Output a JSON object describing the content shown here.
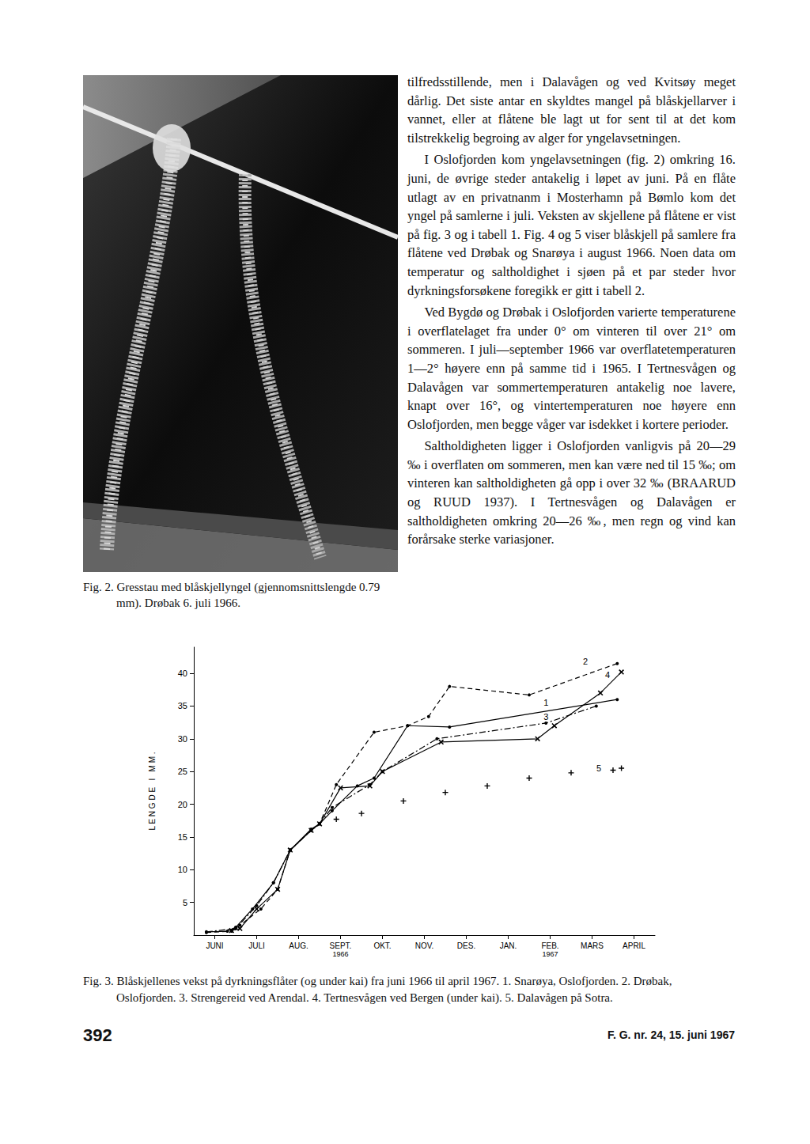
{
  "figure2": {
    "caption": "Fig. 2. Gresstau med blåskjellyngel (gjennomsnittslengde 0.79 mm). Drøbak 6. juli 1966."
  },
  "text": {
    "paragraphs": [
      "tilfredsstillende, men i Dalavågen og ved Kvitsøy meget dårlig. Det siste antar en skyldtes mangel på blåskjellarver i vannet, eller at flåtene ble lagt ut for sent til at det kom tilstrekkelig begroing av alger for yngelavsetningen.",
      "I Oslofjorden kom yngelavsetningen (fig. 2) omkring 16. juni, de øvrige steder antakelig i løpet av juni. På en flåte utlagt av en privatnanm i Mosterhamn på Bømlo kom det yngel på samlerne i juli. Veksten av skjellene på flåtene er vist på fig. 3 og i tabell 1. Fig. 4 og 5 viser blåskjell på samlere fra flåtene ved Drøbak og Snarøya i august 1966. Noen data om temperatur og saltholdighet i sjøen på et par steder hvor dyrkningsforsøkene foregikk er gitt i tabell 2.",
      "Ved Bygdø og Drøbak i Oslofjorden varierte temperaturene i overflatelaget fra under 0° om vinteren til over 21° om sommeren. I juli—september 1966 var overflatetemperaturen 1—2° høyere enn på samme tid i 1965. I Tertnesvågen og Dalavågen var sommertemperaturen antakelig noe lavere, knapt over 16°, og vintertemperaturen noe høyere enn Oslofjorden, men begge våger var isdekket i kortere perioder.",
      "Saltholdigheten ligger i Oslofjorden vanligvis på 20—29 ‰ i overflaten om sommeren, men kan være ned til 15 ‰; om vinteren kan saltholdigheten gå opp i over 32 ‰ (BRAARUD og RUUD 1937). I Tertnesvågen og Dalavågen er saltholdigheten omkring 20—26 ‰, men regn og vind kan forårsake sterke variasjoner."
    ]
  },
  "chart_data": {
    "type": "line",
    "y_label": "LENGDE I MM.",
    "color": "#000000",
    "grid": false,
    "xlim": [
      0,
      11
    ],
    "xticks": [
      {
        "value": 0.5,
        "label": "JUNI"
      },
      {
        "value": 1.5,
        "label": "JULI"
      },
      {
        "value": 2.5,
        "label": "AUG."
      },
      {
        "value": 3.5,
        "label": "SEPT."
      },
      {
        "value": 4.5,
        "label": "OKT."
      },
      {
        "value": 5.5,
        "label": "NOV."
      },
      {
        "value": 6.5,
        "label": "DES."
      },
      {
        "value": 7.5,
        "label": "JAN."
      },
      {
        "value": 8.5,
        "label": "FEB."
      },
      {
        "value": 9.5,
        "label": "MARS"
      },
      {
        "value": 10.5,
        "label": "APRIL"
      }
    ],
    "year_labels": [
      {
        "x": 3.5,
        "label": "1966"
      },
      {
        "x": 8.5,
        "label": "1967"
      }
    ],
    "ylim": [
      0,
      44
    ],
    "yticks": [
      5,
      10,
      15,
      20,
      25,
      30,
      35,
      40
    ],
    "series": [
      {
        "marker": "circle",
        "line_style": "solid",
        "x": [
          0.3,
          0.8,
          1.0,
          1.4,
          1.9,
          2.3,
          2.8,
          3.0,
          3.3,
          3.9,
          4.3,
          5.1,
          6.1,
          10.1
        ],
        "values": [
          0.5,
          0.6,
          1.2,
          4,
          8,
          13,
          16.2,
          17,
          19,
          22.8,
          24,
          32,
          31.8,
          36
        ]
      },
      {
        "marker": "circle",
        "line_style": "dashed",
        "x": [
          0.3,
          0.9,
          1.1,
          1.6,
          2.0,
          2.3,
          2.8,
          3.0,
          3.4,
          4.3,
          5.1,
          5.6,
          6.1,
          8.0,
          10.1
        ],
        "values": [
          0.4,
          0.6,
          1.5,
          4,
          7,
          13,
          16,
          17,
          23,
          31,
          32,
          33.4,
          38,
          36.7,
          41.5
        ]
      },
      {
        "marker": "circle",
        "line_style": "dashdot",
        "x": [
          0.3,
          1.0,
          1.5,
          1.9,
          2.3,
          2.8,
          3.0,
          3.3,
          4.2,
          4.5,
          5.8,
          8.4,
          9.6
        ],
        "values": [
          0.5,
          1.0,
          4.5,
          8,
          13,
          16,
          17,
          19.5,
          23,
          25,
          30,
          32.4,
          35
        ]
      },
      {
        "marker": "x",
        "line_style": "solid",
        "x": [
          0.9,
          1.1,
          1.5,
          2.0,
          2.3,
          2.8,
          3.0,
          3.5,
          4.2,
          4.5,
          5.9,
          8.2,
          8.6,
          9.7,
          10.2
        ],
        "values": [
          0.7,
          1.0,
          4,
          7,
          13,
          16,
          17,
          22.5,
          22.8,
          25,
          29.5,
          30,
          32,
          37,
          40.2
        ]
      },
      {
        "marker": "plus",
        "line_style": "none",
        "x": [
          3.4,
          4.0,
          5.0,
          6.0,
          7.0,
          8.0,
          9.0,
          10.0,
          10.2
        ],
        "values": [
          17.7,
          18.6,
          20.5,
          21.8,
          22.8,
          24,
          24.8,
          25.2,
          25.5
        ]
      }
    ],
    "annotations": [
      {
        "text": "1",
        "x": 8.4,
        "y": 35.5
      },
      {
        "text": "2",
        "x": 9.34,
        "y": 41.8
      },
      {
        "text": "3",
        "x": 8.4,
        "y": 33.4
      },
      {
        "text": "4",
        "x": 9.87,
        "y": 39.8
      },
      {
        "text": "5",
        "x": 9.66,
        "y": 25.5
      }
    ]
  },
  "figure3": {
    "caption": "Fig. 3. Blåskjellenes vekst på dyrkningsflåter (og under kai) fra juni 1966 til april 1967. 1. Snarøya, Oslofjorden. 2. Drøbak, Oslofjorden. 3. Strengereid ved Arendal. 4. Tertnesvågen ved Bergen (under kai). 5. Dalavågen på Sotra."
  },
  "footer": {
    "page": "392",
    "issue": "F. G. nr. 24, 15. juni 1967"
  }
}
